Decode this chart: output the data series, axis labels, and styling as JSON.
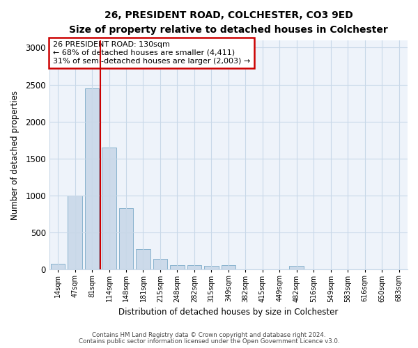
{
  "title1": "26, PRESIDENT ROAD, COLCHESTER, CO3 9ED",
  "title2": "Size of property relative to detached houses in Colchester",
  "xlabel": "Distribution of detached houses by size in Colchester",
  "ylabel": "Number of detached properties",
  "categories": [
    "14sqm",
    "47sqm",
    "81sqm",
    "114sqm",
    "148sqm",
    "181sqm",
    "215sqm",
    "248sqm",
    "282sqm",
    "315sqm",
    "349sqm",
    "382sqm",
    "415sqm",
    "449sqm",
    "482sqm",
    "516sqm",
    "549sqm",
    "583sqm",
    "616sqm",
    "650sqm",
    "683sqm"
  ],
  "values": [
    75,
    1000,
    2450,
    1650,
    830,
    280,
    140,
    55,
    55,
    50,
    55,
    0,
    0,
    0,
    50,
    0,
    0,
    0,
    0,
    0,
    0
  ],
  "bar_color": "#ccdaea",
  "bar_edge_color": "#7aaac8",
  "vline_color": "#cc0000",
  "vline_xindex": 2.5,
  "annotation_text": "26 PRESIDENT ROAD: 130sqm\n← 68% of detached houses are smaller (4,411)\n31% of semi-detached houses are larger (2,003) →",
  "annotation_box_color": "#cc0000",
  "ylim": [
    0,
    3100
  ],
  "yticks": [
    0,
    500,
    1000,
    1500,
    2000,
    2500,
    3000
  ],
  "footer1": "Contains HM Land Registry data © Crown copyright and database right 2024.",
  "footer2": "Contains public sector information licensed under the Open Government Licence v3.0.",
  "bg_color": "#ffffff",
  "plot_bg_color": "#eef3fa"
}
